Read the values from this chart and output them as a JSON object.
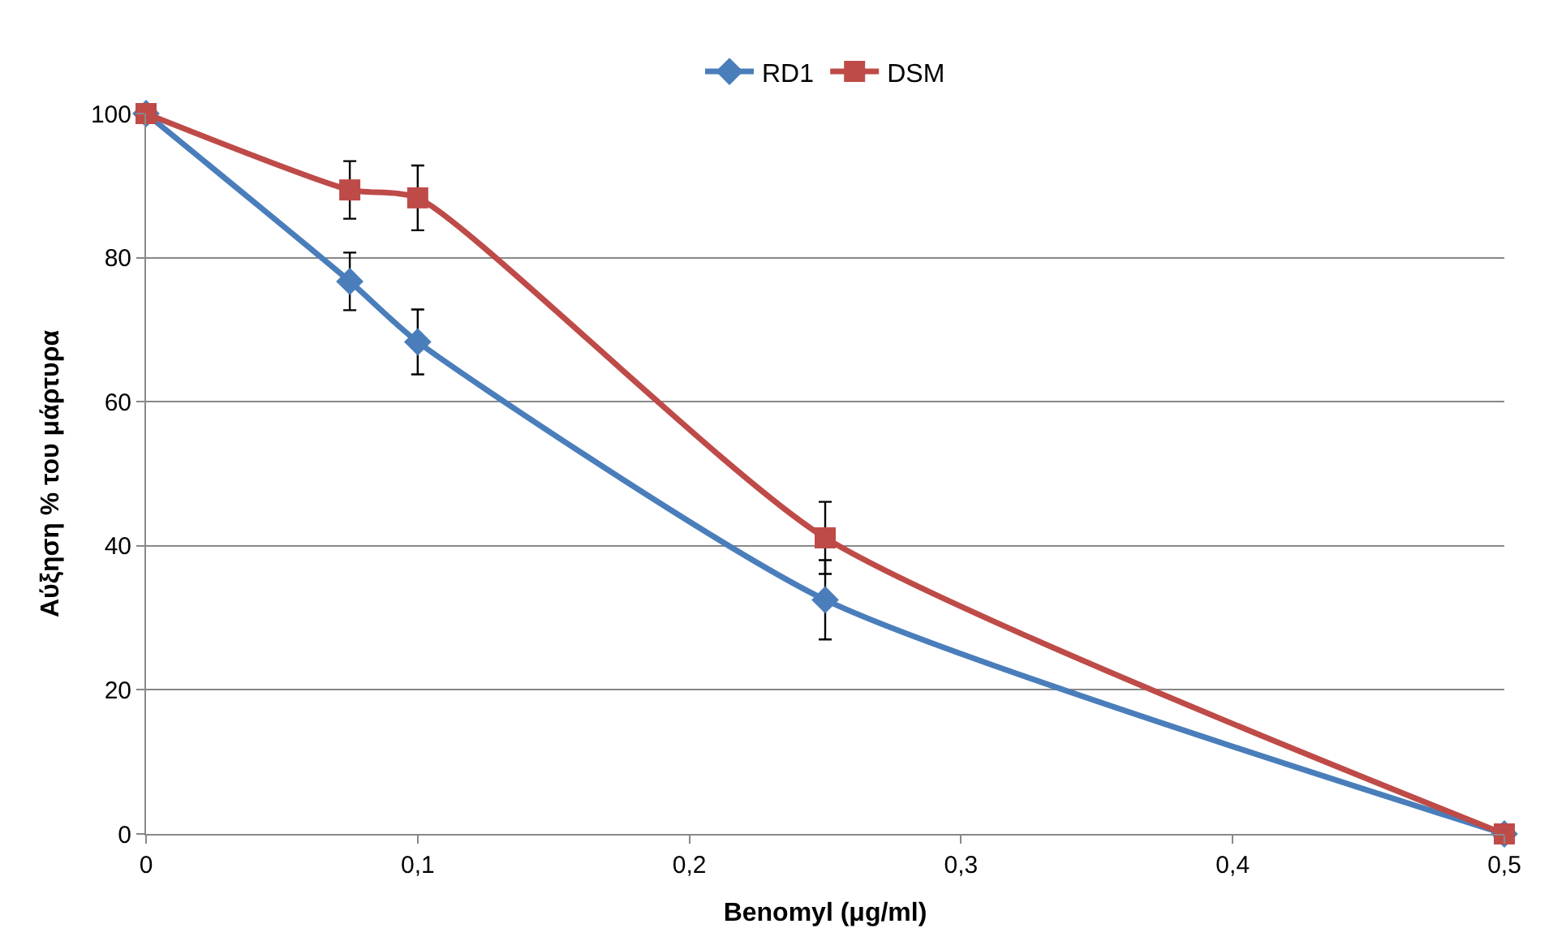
{
  "chart_data": {
    "type": "line",
    "xlabel": "Benomyl (μg/ml)",
    "ylabel": "Αύξηση % του μάρτυρα",
    "x": [
      0,
      0.075,
      0.1,
      0.25,
      0.5
    ],
    "series": [
      {
        "name": "RD1",
        "color": "#4a7ebb",
        "marker": "diamond",
        "values": [
          100,
          76.7,
          68.3,
          32.5,
          0
        ],
        "errors": [
          null,
          4,
          4.5,
          5.5,
          null
        ]
      },
      {
        "name": "DSM",
        "color": "#be4b48",
        "marker": "square",
        "values": [
          100,
          89.4,
          88.3,
          41.1,
          0
        ],
        "errors": [
          null,
          4,
          4.5,
          5,
          null
        ]
      }
    ],
    "xlim": [
      0,
      0.5
    ],
    "xticks": [
      0,
      {
        "value": 0.1,
        "label": "0,1"
      },
      {
        "value": 0.2,
        "label": "0,2"
      },
      {
        "value": 0.3,
        "label": "0,3"
      },
      {
        "value": 0.4,
        "label": "0,4"
      },
      {
        "value": 0.5,
        "label": "0,5"
      }
    ],
    "ylim": [
      0,
      100
    ],
    "yticks": [
      0,
      20,
      40,
      60,
      80,
      100
    ],
    "grid": "y",
    "legend": "top",
    "line_style": "solid"
  }
}
